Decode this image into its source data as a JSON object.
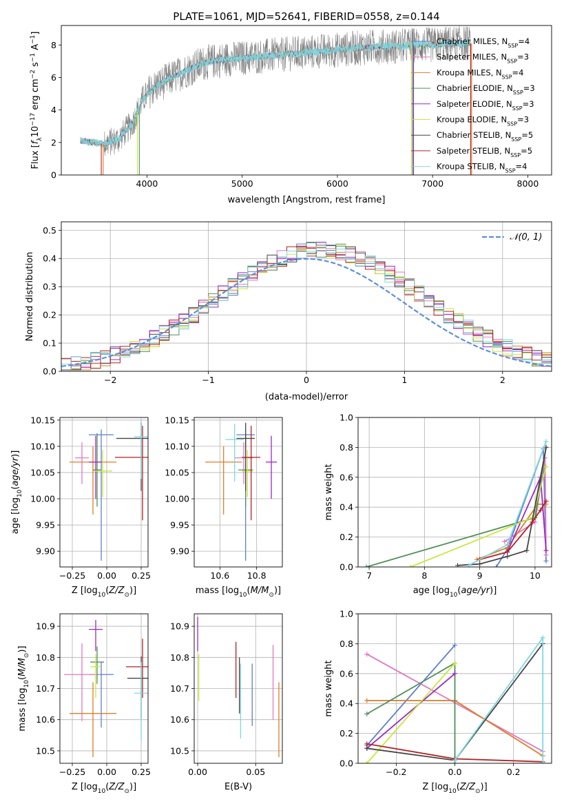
{
  "figure": {
    "title": "PLATE=1061, MJD=52641, FIBERID=0558, z=0.144"
  },
  "series_legend": [
    {
      "name": "Chabrier MILES, N_SSP=4",
      "base": "Chabrier MILES, N",
      "sub": "SSP",
      "tail": "=4",
      "color": "#5b7fcf"
    },
    {
      "name": "Salpeter MILES, N_SSP=3",
      "base": "Salpeter MILES, N",
      "sub": "SSP",
      "tail": "=3",
      "color": "#e377c2"
    },
    {
      "name": "Kroupa MILES, N_SSP=4",
      "base": "Kroupa MILES, N",
      "sub": "SSP",
      "tail": "=4",
      "color": "#e07b22"
    },
    {
      "name": "Chabrier ELODIE, N_SSP=3",
      "base": "Chabrier ELODIE, N",
      "sub": "SSP",
      "tail": "=3",
      "color": "#4e8f5a"
    },
    {
      "name": "Salpeter ELODIE, N_SSP=3",
      "base": "Salpeter ELODIE, N",
      "sub": "SSP",
      "tail": "=3",
      "color": "#9b27c9"
    },
    {
      "name": "Kroupa ELODIE, N_SSP=3",
      "base": "Kroupa ELODIE, N",
      "sub": "SSP",
      "tail": "=3",
      "color": "#c6e83a"
    },
    {
      "name": "Chabrier STELIB, N_SSP=5",
      "base": "Chabrier STELIB, N",
      "sub": "SSP",
      "tail": "=5",
      "color": "#444444"
    },
    {
      "name": "Salpeter STELIB, N_SSP=5",
      "base": "Salpeter STELIB, N",
      "sub": "SSP",
      "tail": "=5",
      "color": "#b22222"
    },
    {
      "name": "Kroupa STELIB, N_SSP=4",
      "base": "Kroupa STELIB, N",
      "sub": "SSP",
      "tail": "=4",
      "color": "#7fd6e0"
    }
  ],
  "chart_data": [
    {
      "id": "spectrum",
      "type": "line",
      "xlabel": "wavelength [Angstrom, rest frame]",
      "ylabel": "Flux [f_λ 10^-17 erg cm^-2 s^-1 A^-1]",
      "ylabel_parts": {
        "a": "Flux [",
        "b": "f",
        "c": "λ",
        "d": "10",
        "e": "−17",
        "f": " erg cm",
        "g": "−2",
        "h": " s",
        "i": "−1",
        "j": " A",
        "k": "−1",
        "l": "]"
      },
      "xlim": [
        3100,
        8250
      ],
      "ylim": [
        0,
        9.2
      ],
      "xticks": [
        4000,
        5000,
        6000,
        7000,
        8000
      ],
      "yticks": [
        0,
        2,
        4,
        6,
        8
      ],
      "data_color": "#808080",
      "model_color": "#7fd6e0",
      "continuum": {
        "x": [
          3300,
          3450,
          3550,
          3700,
          3850,
          3950,
          4050,
          4200,
          4400,
          4600,
          4800,
          5000,
          5200,
          5400,
          5600,
          5800,
          6000,
          6200,
          6400,
          6600,
          6800,
          7000,
          7200,
          7400
        ],
        "y": [
          2.1,
          2.0,
          1.9,
          2.2,
          3.2,
          4.6,
          5.3,
          5.8,
          6.4,
          6.9,
          7.1,
          7.2,
          7.3,
          7.4,
          7.5,
          7.6,
          7.7,
          7.8,
          7.9,
          7.9,
          8.0,
          8.0,
          8.1,
          8.1
        ]
      },
      "data_range": [
        3300,
        7400
      ],
      "model_drop_edges": [
        {
          "x": 3520,
          "color": "#b22222"
        },
        {
          "x": 3540,
          "color": "#e07b22"
        },
        {
          "x": 3900,
          "color": "#c6e83a"
        },
        {
          "x": 3920,
          "color": "#4e8f5a"
        },
        {
          "x": 6780,
          "color": "#c6e83a"
        },
        {
          "x": 6790,
          "color": "#4e8f5a"
        },
        {
          "x": 6800,
          "color": "#9b27c9"
        },
        {
          "x": 7400,
          "color": "#b22222"
        },
        {
          "x": 7410,
          "color": "#e07b22"
        }
      ]
    },
    {
      "id": "residuals",
      "type": "histogram",
      "xlabel": "(data-model)/error",
      "ylabel": "Normed distribution",
      "xlim": [
        -2.5,
        2.5
      ],
      "ylim": [
        0,
        0.53
      ],
      "xticks": [
        -2,
        -1,
        0,
        1,
        2
      ],
      "yticks": [
        0.0,
        0.1,
        0.2,
        0.3,
        0.4,
        0.5
      ],
      "ytick_labels": [
        "0.0",
        "0.1",
        "0.2",
        "0.3",
        "0.4",
        "0.5"
      ],
      "xtick_labels": [
        "−2",
        "−1",
        "0",
        "1",
        "2"
      ],
      "legend": {
        "label": "𝒩(0, 1)",
        "color": "#5b8fd9",
        "placement": "upper right"
      },
      "bin_width": 0.1,
      "bin_start": -2.5
    },
    {
      "id": "age_vs_Z",
      "type": "errorbar",
      "xlabel": "Z [log10(Z/Z⊙)]",
      "ylabel": "age [log10(age/yr)]",
      "xlim": [
        -0.34,
        0.3
      ],
      "ylim": [
        9.87,
        10.155
      ],
      "xticks": [
        -0.25,
        0.0,
        0.25
      ],
      "xtick_labels": [
        "−0.25",
        "0.00",
        "0.25"
      ],
      "yticks": [
        9.9,
        9.95,
        10.0,
        10.05,
        10.1,
        10.15
      ],
      "ytick_labels": [
        "9.90",
        "9.95",
        "10.00",
        "10.05",
        "10.10",
        "10.15"
      ],
      "points": [
        {
          "x": -0.04,
          "xerr": 0.09,
          "y": 10.122,
          "yerr_lo": 0.24,
          "yerr_hi": 0.01,
          "color": "#5b7fcf"
        },
        {
          "x": -0.18,
          "xerr": 0.05,
          "y": 10.078,
          "yerr_lo": 0.05,
          "yerr_hi": 0.03,
          "color": "#e377c2"
        },
        {
          "x": -0.1,
          "xerr": 0.17,
          "y": 10.07,
          "yerr_lo": 0.1,
          "yerr_hi": 0.03,
          "color": "#e07b22"
        },
        {
          "x": -0.07,
          "xerr": 0.03,
          "y": 10.055,
          "yerr_lo": 0.07,
          "yerr_hi": 0.07,
          "color": "#4e8f5a"
        },
        {
          "x": -0.08,
          "xerr": 0.05,
          "y": 10.07,
          "yerr_lo": 0.07,
          "yerr_hi": 0.05,
          "color": "#9b27c9"
        },
        {
          "x": -0.03,
          "xerr": 0.07,
          "y": 10.053,
          "yerr_lo": 0.05,
          "yerr_hi": 0.04,
          "color": "#c6e83a"
        },
        {
          "x": 0.25,
          "xerr": 0.18,
          "y": 10.115,
          "yerr_lo": 0.1,
          "yerr_hi": 0.03,
          "color": "#444444"
        },
        {
          "x": 0.26,
          "xerr": 0.2,
          "y": 10.079,
          "yerr_lo": 0.12,
          "yerr_hi": 0.06,
          "color": "#b22222"
        },
        {
          "x": 0.25,
          "xerr": 0.05,
          "y": 10.118,
          "yerr_lo": 0.08,
          "yerr_hi": 0.03,
          "color": "#7fd6e0"
        }
      ]
    },
    {
      "id": "age_vs_mass",
      "type": "errorbar",
      "xlabel": "mass [log10(M/M⊙)]",
      "xlim": [
        10.46,
        10.94
      ],
      "ylim": [
        9.87,
        10.155
      ],
      "xticks": [
        10.6,
        10.8
      ],
      "xtick_labels": [
        "10.6",
        "10.8"
      ],
      "yticks": [
        9.9,
        9.95,
        10.0,
        10.05,
        10.1,
        10.15
      ],
      "ytick_labels": [
        "9.90",
        "9.95",
        "10.00",
        "10.05",
        "10.10",
        "10.15"
      ],
      "points": [
        {
          "x": 10.74,
          "xerr": 0.05,
          "y": 10.122,
          "yerr_lo": 0.24,
          "yerr_hi": 0.01,
          "color": "#5b7fcf"
        },
        {
          "x": 10.73,
          "xerr": 0.05,
          "y": 10.078,
          "yerr_lo": 0.05,
          "yerr_hi": 0.03,
          "color": "#e377c2"
        },
        {
          "x": 10.62,
          "xerr": 0.1,
          "y": 10.07,
          "yerr_lo": 0.1,
          "yerr_hi": 0.03,
          "color": "#e07b22"
        },
        {
          "x": 10.74,
          "xerr": 0.04,
          "y": 10.055,
          "yerr_lo": 0.07,
          "yerr_hi": 0.07,
          "color": "#4e8f5a"
        },
        {
          "x": 10.88,
          "xerr": 0.03,
          "y": 10.07,
          "yerr_lo": 0.07,
          "yerr_hi": 0.05,
          "color": "#9b27c9"
        },
        {
          "x": 10.75,
          "xerr": 0.03,
          "y": 10.053,
          "yerr_lo": 0.05,
          "yerr_hi": 0.04,
          "color": "#c6e83a"
        },
        {
          "x": 10.74,
          "xerr": 0.05,
          "y": 10.115,
          "yerr_lo": 0.1,
          "yerr_hi": 0.03,
          "color": "#444444"
        },
        {
          "x": 10.77,
          "xerr": 0.05,
          "y": 10.079,
          "yerr_lo": 0.12,
          "yerr_hi": 0.06,
          "color": "#b22222"
        },
        {
          "x": 10.68,
          "xerr": 0.05,
          "y": 10.113,
          "yerr_lo": 0.08,
          "yerr_hi": 0.03,
          "color": "#7fd6e0"
        }
      ]
    },
    {
      "id": "weight_vs_age",
      "type": "line",
      "xlabel": "age [log10(age/yr)]",
      "ylabel": "mass weight",
      "xlim": [
        6.8,
        10.3
      ],
      "ylim": [
        0,
        1.0
      ],
      "xticks": [
        7,
        8,
        9,
        10
      ],
      "xtick_labels": [
        "7",
        "8",
        "9",
        "10"
      ],
      "yticks": [
        0.0,
        0.2,
        0.4,
        0.6,
        0.8,
        1.0
      ],
      "ytick_labels": [
        "0.0",
        "0.2",
        "0.4",
        "0.6",
        "0.8",
        "1.0"
      ],
      "series": [
        {
          "name": "Chabrier MILES",
          "color": "#5b7fcf",
          "x": [
            9.3,
            9.5,
            10.15,
            10.2
          ],
          "y": [
            0.0,
            0.12,
            0.79,
            0.04
          ]
        },
        {
          "name": "Salpeter MILES",
          "color": "#e377c2",
          "x": [
            9.45,
            10.0,
            10.18,
            10.2
          ],
          "y": [
            0.17,
            0.3,
            0.73,
            0.08
          ]
        },
        {
          "name": "Kroupa MILES",
          "color": "#e07b22",
          "x": [
            8.95,
            9.5,
            10.05,
            10.2
          ],
          "y": [
            0.05,
            0.13,
            0.42,
            0.42
          ]
        },
        {
          "name": "Chabrier ELODIE",
          "color": "#4e8f5a",
          "x": [
            6.95,
            10.0,
            10.2
          ],
          "y": [
            0.0,
            0.33,
            0.8
          ]
        },
        {
          "name": "Salpeter ELODIE",
          "color": "#9b27c9",
          "x": [
            9.5,
            10.1,
            10.2
          ],
          "y": [
            0.1,
            0.6,
            0.11
          ]
        },
        {
          "name": "Kroupa ELODIE",
          "color": "#c6e83a",
          "x": [
            7.75,
            9.95,
            10.2
          ],
          "y": [
            0.0,
            0.33,
            0.67
          ]
        },
        {
          "name": "Chabrier STELIB",
          "color": "#444444",
          "x": [
            8.6,
            9.0,
            9.5,
            9.85,
            10.2
          ],
          "y": [
            0.01,
            0.02,
            0.07,
            0.11,
            0.8
          ]
        },
        {
          "name": "Salpeter STELIB",
          "color": "#b22222",
          "x": [
            9.0,
            9.5,
            9.95,
            10.1,
            10.2
          ],
          "y": [
            0.05,
            0.1,
            0.3,
            0.38,
            0.44
          ]
        },
        {
          "name": "Kroupa STELIB",
          "color": "#7fd6e0",
          "x": [
            8.8,
            9.5,
            10.2
          ],
          "y": [
            0.01,
            0.15,
            0.84
          ]
        }
      ]
    },
    {
      "id": "mass_vs_Z",
      "type": "errorbar",
      "xlabel": "Z [log10(Z/Z⊙)]",
      "ylabel": "mass [log10(M/M⊙)]",
      "xlim": [
        -0.34,
        0.3
      ],
      "ylim": [
        10.46,
        10.94
      ],
      "xticks": [
        -0.25,
        0.0,
        0.25
      ],
      "xtick_labels": [
        "−0.25",
        "0.00",
        "0.25"
      ],
      "yticks": [
        10.5,
        10.6,
        10.7,
        10.8,
        10.9
      ],
      "ytick_labels": [
        "10.5",
        "10.6",
        "10.7",
        "10.8",
        "10.9"
      ],
      "points": [
        {
          "x": -0.04,
          "xerr": 0.09,
          "y": 10.745,
          "yerr_lo": 0.17,
          "yerr_hi": 0.04,
          "color": "#5b7fcf"
        },
        {
          "x": -0.18,
          "xerr": 0.13,
          "y": 10.745,
          "yerr_lo": 0.15,
          "yerr_hi": 0.1,
          "color": "#e377c2"
        },
        {
          "x": -0.1,
          "xerr": 0.17,
          "y": 10.62,
          "yerr_lo": 0.14,
          "yerr_hi": 0.1,
          "color": "#e07b22"
        },
        {
          "x": -0.07,
          "xerr": 0.05,
          "y": 10.785,
          "yerr_lo": 0.07,
          "yerr_hi": 0.05,
          "color": "#4e8f5a"
        },
        {
          "x": -0.08,
          "xerr": 0.05,
          "y": 10.89,
          "yerr_lo": 0.07,
          "yerr_hi": 0.03,
          "color": "#9b27c9"
        },
        {
          "x": -0.08,
          "xerr": 0.04,
          "y": 10.77,
          "yerr_lo": 0.1,
          "yerr_hi": 0.04,
          "color": "#c6e83a"
        },
        {
          "x": 0.25,
          "xerr": 0.1,
          "y": 10.733,
          "yerr_lo": 0.13,
          "yerr_hi": 0.07,
          "color": "#444444"
        },
        {
          "x": 0.26,
          "xerr": 0.12,
          "y": 10.77,
          "yerr_lo": 0.1,
          "yerr_hi": 0.09,
          "color": "#b22222"
        },
        {
          "x": 0.25,
          "xerr": 0.05,
          "y": 10.685,
          "yerr_lo": 0.15,
          "yerr_hi": 0.1,
          "color": "#7fd6e0"
        }
      ]
    },
    {
      "id": "mass_vs_ebv",
      "type": "errorbar",
      "xlabel": "E(B-V)",
      "xlim": [
        -0.003,
        0.073
      ],
      "ylim": [
        10.46,
        10.94
      ],
      "xticks": [
        0.0,
        0.05
      ],
      "xtick_labels": [
        "0.00",
        "0.05"
      ],
      "yticks": [
        10.5,
        10.6,
        10.7,
        10.8,
        10.9
      ],
      "ytick_labels": [
        "10.5",
        "10.6",
        "10.7",
        "10.8",
        "10.9"
      ],
      "points": [
        {
          "x": 0.0,
          "y": 10.86,
          "yerr_lo": 0.04,
          "yerr_hi": 0.07,
          "color": "#9b27c9"
        },
        {
          "x": 0.001,
          "y": 10.74,
          "yerr_lo": 0.08,
          "yerr_hi": 0.07,
          "color": "#c6e83a"
        },
        {
          "x": 0.033,
          "y": 10.76,
          "yerr_lo": 0.09,
          "yerr_hi": 0.09,
          "color": "#b22222"
        },
        {
          "x": 0.036,
          "y": 10.7,
          "yerr_lo": 0.08,
          "yerr_hi": 0.1,
          "color": "#444444"
        },
        {
          "x": 0.037,
          "y": 10.66,
          "yerr_lo": 0.12,
          "yerr_hi": 0.12,
          "color": "#7fd6e0"
        },
        {
          "x": 0.047,
          "y": 10.68,
          "yerr_lo": 0.1,
          "yerr_hi": 0.1,
          "color": "#5b7fcf"
        },
        {
          "x": 0.065,
          "y": 10.72,
          "yerr_lo": 0.12,
          "yerr_hi": 0.12,
          "color": "#e377c2"
        },
        {
          "x": 0.07,
          "y": 10.6,
          "yerr_lo": 0.12,
          "yerr_hi": 0.12,
          "color": "#e07b22"
        }
      ]
    },
    {
      "id": "weight_vs_Z",
      "type": "line",
      "xlabel": "Z [log10(Z/Z⊙)]",
      "ylabel": "mass weight",
      "xlim": [
        -0.33,
        0.33
      ],
      "ylim": [
        0,
        1.0
      ],
      "xticks": [
        -0.2,
        0.0,
        0.2
      ],
      "xtick_labels": [
        "−0.2",
        "0.0",
        "0.2"
      ],
      "yticks": [
        0.0,
        0.2,
        0.4,
        0.6,
        0.8,
        1.0
      ],
      "ytick_labels": [
        "0.0",
        "0.2",
        "0.4",
        "0.6",
        "0.8",
        "1.0"
      ],
      "series": [
        {
          "name": "Chabrier MILES",
          "color": "#5b7fcf",
          "x": [
            -0.3,
            0.0
          ],
          "y": [
            0.12,
            0.79
          ]
        },
        {
          "name": "Salpeter MILES",
          "color": "#e377c2",
          "x": [
            -0.3,
            0.3
          ],
          "y": [
            0.73,
            0.08
          ]
        },
        {
          "name": "Kroupa MILES",
          "color": "#e07b22",
          "x": [
            -0.3,
            0.0,
            0.3
          ],
          "y": [
            0.42,
            0.42,
            0.05
          ]
        },
        {
          "name": "Chabrier ELODIE",
          "color": "#4e8f5a",
          "x": [
            -0.3,
            0.0,
            0.0
          ],
          "y": [
            0.33,
            0.67,
            0.0
          ]
        },
        {
          "name": "Salpeter ELODIE",
          "color": "#9b27c9",
          "x": [
            -0.3,
            0.0
          ],
          "y": [
            0.1,
            0.6
          ]
        },
        {
          "name": "Kroupa ELODIE",
          "color": "#c6e83a",
          "x": [
            -0.3,
            0.0
          ],
          "y": [
            0.0,
            0.67
          ]
        },
        {
          "name": "Chabrier STELIB",
          "color": "#444444",
          "x": [
            -0.3,
            0.0,
            0.3
          ],
          "y": [
            0.1,
            0.02,
            0.8
          ]
        },
        {
          "name": "Salpeter STELIB",
          "color": "#b22222",
          "x": [
            -0.3,
            0.0,
            0.3
          ],
          "y": [
            0.13,
            0.03,
            0.01
          ]
        },
        {
          "name": "Kroupa STELIB",
          "color": "#7fd6e0",
          "x": [
            0.0,
            0.3,
            0.3
          ],
          "y": [
            0.02,
            0.84,
            0.0
          ]
        }
      ]
    }
  ]
}
